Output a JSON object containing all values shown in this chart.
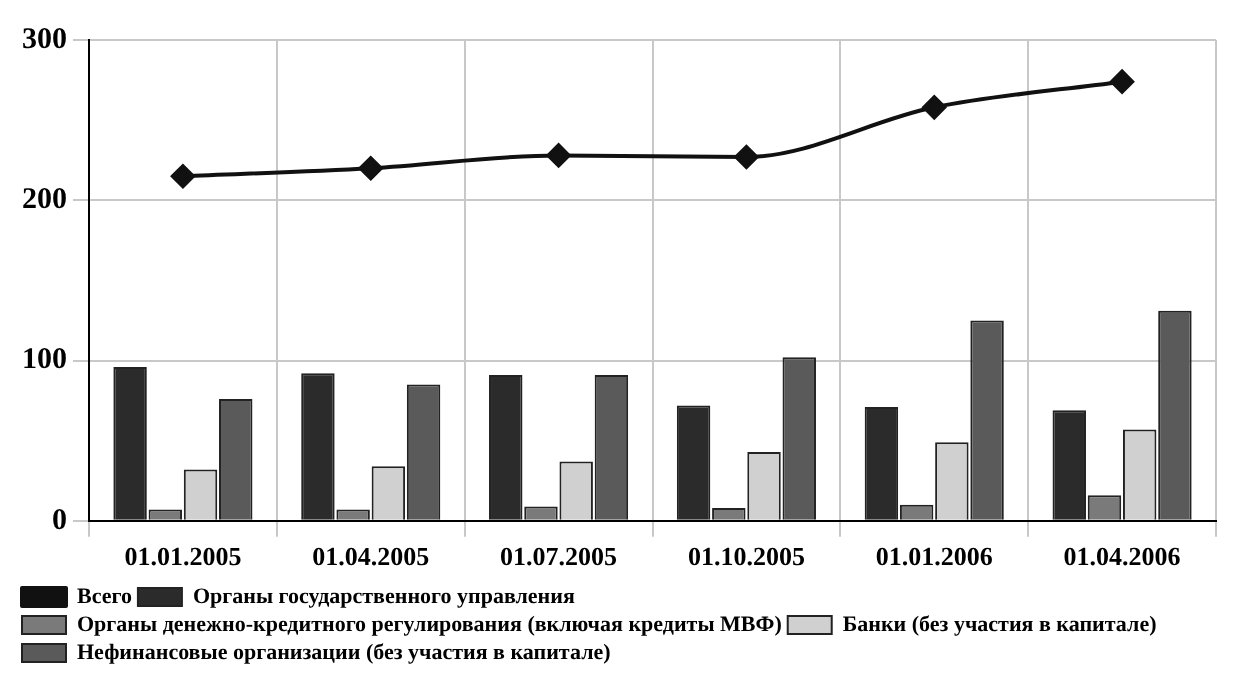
{
  "chart_data": {
    "type": "bar",
    "categories": [
      "01.01.2005",
      "01.04.2005",
      "01.07.2005",
      "01.10.2005",
      "01.01.2006",
      "01.04.2006"
    ],
    "series": [
      {
        "name": "Органы государственного управления",
        "color": "#2b2b2b",
        "values": [
          96,
          92,
          91,
          72,
          71,
          69
        ]
      },
      {
        "name": "Органы денежно-кредитного регулирования (включая кредиты МВФ)",
        "color": "#7a7a7a",
        "values": [
          7,
          7,
          9,
          8,
          10,
          16
        ]
      },
      {
        "name": "Банки (без участия в капитале)",
        "color": "#d0d0d0",
        "values": [
          32,
          34,
          37,
          43,
          49,
          57
        ]
      },
      {
        "name": "Нефинансовые организации (без участия в капитале)",
        "color": "#5a5a5a",
        "values": [
          76,
          85,
          91,
          102,
          125,
          131
        ]
      },
      {
        "name": "Всего",
        "type": "line",
        "color": "#111111",
        "values": [
          215,
          220,
          228,
          227,
          258,
          274
        ]
      }
    ],
    "ylim": [
      0,
      300
    ],
    "yticks": [
      0,
      100,
      200,
      300
    ],
    "grid": true,
    "legend": "bottom",
    "marker": "diamond"
  }
}
